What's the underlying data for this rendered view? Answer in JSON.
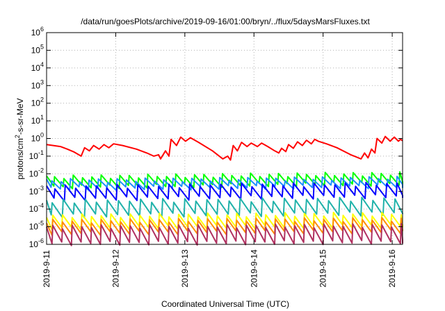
{
  "chart_data": {
    "type": "line",
    "title": "/data/run/goesPlots/archive/2019-09-16/01:00/bryn/../flux/5daysMarsFluxes.txt",
    "xlabel": "Coordinated Universal Time (UTC)",
    "ylabel_base": "protons/cm",
    "ylabel_sup": "2",
    "ylabel_rest": "-s-sr-MeV",
    "scale": "log",
    "ylim": [
      1e-06,
      1000000.0
    ],
    "xlim_days": [
      0,
      5.15
    ],
    "grid": true,
    "x_tick_labels": [
      "2019-9-11",
      "2019-9-12",
      "2019-9-13",
      "2019-9-14",
      "2019-9-15",
      "2019-9-16"
    ],
    "y_tick_exponents": [
      -6,
      -5,
      -4,
      -3,
      -2,
      -1,
      0,
      1,
      2,
      3,
      4,
      5,
      6
    ],
    "y_tick_base": "10",
    "series": [
      {
        "color": "#ff0000",
        "points": [
          [
            0.0,
            0.45
          ],
          [
            0.2,
            0.35
          ],
          [
            0.3,
            0.25
          ],
          [
            0.4,
            0.17
          ],
          [
            0.5,
            0.1
          ],
          [
            0.55,
            0.3
          ],
          [
            0.62,
            0.2
          ],
          [
            0.68,
            0.4
          ],
          [
            0.76,
            0.25
          ],
          [
            0.83,
            0.45
          ],
          [
            0.9,
            0.3
          ],
          [
            0.97,
            0.5
          ],
          [
            1.1,
            0.4
          ],
          [
            1.3,
            0.25
          ],
          [
            1.45,
            0.15
          ],
          [
            1.55,
            0.1
          ],
          [
            1.62,
            0.12
          ],
          [
            1.65,
            0.07
          ],
          [
            1.72,
            0.2
          ],
          [
            1.77,
            0.1
          ],
          [
            1.8,
            0.9
          ],
          [
            1.88,
            0.4
          ],
          [
            1.94,
            1.2
          ],
          [
            2.01,
            0.7
          ],
          [
            2.08,
            1.1
          ],
          [
            2.2,
            0.6
          ],
          [
            2.4,
            0.2
          ],
          [
            2.55,
            0.07
          ],
          [
            2.62,
            0.1
          ],
          [
            2.66,
            0.06
          ],
          [
            2.7,
            0.4
          ],
          [
            2.76,
            0.2
          ],
          [
            2.82,
            0.6
          ],
          [
            2.9,
            0.35
          ],
          [
            2.96,
            0.55
          ],
          [
            3.05,
            0.35
          ],
          [
            3.11,
            0.55
          ],
          [
            3.2,
            0.35
          ],
          [
            3.3,
            0.2
          ],
          [
            3.36,
            0.15
          ],
          [
            3.4,
            0.28
          ],
          [
            3.46,
            0.18
          ],
          [
            3.5,
            0.45
          ],
          [
            3.57,
            0.28
          ],
          [
            3.63,
            0.65
          ],
          [
            3.7,
            0.4
          ],
          [
            3.76,
            0.8
          ],
          [
            3.83,
            0.5
          ],
          [
            3.88,
            0.9
          ],
          [
            3.93,
            0.7
          ],
          [
            4.05,
            0.5
          ],
          [
            4.2,
            0.3
          ],
          [
            4.4,
            0.12
          ],
          [
            4.55,
            0.07
          ],
          [
            4.6,
            0.15
          ],
          [
            4.65,
            0.08
          ],
          [
            4.7,
            0.25
          ],
          [
            4.75,
            0.15
          ],
          [
            4.78,
            1.0
          ],
          [
            4.85,
            0.55
          ],
          [
            4.9,
            1.3
          ],
          [
            4.97,
            0.7
          ],
          [
            5.03,
            1.2
          ],
          [
            5.09,
            0.7
          ],
          [
            5.12,
            0.9
          ],
          [
            5.15,
            0.75
          ]
        ]
      },
      {
        "color": "#00ff00",
        "base": 0.0035,
        "trend": [
          0.0025,
          0.004
        ],
        "spike": 2.6,
        "period": 0.135,
        "phase": 0.02
      },
      {
        "color": "#1e90ff",
        "base": 0.0022,
        "trend": [
          0.0018,
          0.0025
        ],
        "spike": 2.3,
        "period": 0.135,
        "phase": 0.06
      },
      {
        "color": "#0000ff",
        "base": 0.0007,
        "trend": [
          0.0006,
          0.0009
        ],
        "spike": 3.0,
        "period": 0.15,
        "phase": 0.03
      },
      {
        "color": "#20b2aa",
        "base": 9e-05,
        "trend": [
          8e-05,
          0.00011
        ],
        "spike": 3.5,
        "period": 0.16,
        "phase": 0.08
      },
      {
        "color": "#ffff00",
        "base": 1.5e-05,
        "trend": [
          1.4e-05,
          1.8e-05
        ],
        "spike": 3.0,
        "period": 0.14,
        "phase": 0.05
      },
      {
        "color": "#ff8c00",
        "base": 7e-06,
        "trend": [
          7e-06,
          9e-06
        ],
        "spike": 3.0,
        "period": 0.14,
        "phase": 0.05
      },
      {
        "color": "#b03060",
        "base": 2.5e-06,
        "trend": [
          2.5e-06,
          3e-06
        ],
        "spike": 4.0,
        "period": 0.14,
        "phase": 0.05
      }
    ]
  }
}
